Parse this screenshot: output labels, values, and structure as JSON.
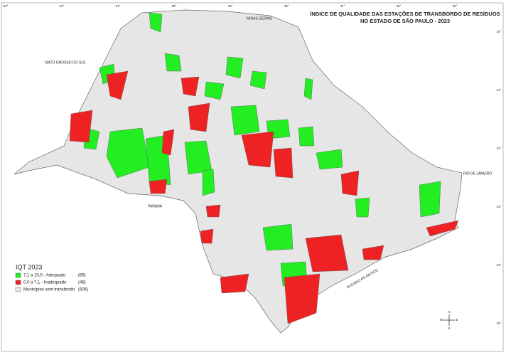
{
  "header": {
    "title_line1": "ÍNDICE DE QUALIDADE DAS ESTAÇÕES DE TRANSBORDO DE RESÍDUOS",
    "title_line2": "NO ESTADO DE SÃO PAULO - 2023"
  },
  "grid_labels": {
    "longitudes": [
      "53°",
      "52°",
      "51°",
      "50°",
      "49°",
      "48°",
      "47°",
      "46°",
      "45°"
    ],
    "latitudes": [
      "20°",
      "21°",
      "22°",
      "23°",
      "24°",
      "25°"
    ]
  },
  "neighbors": {
    "ms": "MATO GROSSO DO SUL",
    "mg": "MINAS GERAIS",
    "pr": "PARANÁ",
    "rj": "RIO DE JANEIRO",
    "ocean": "OCEANO ATLÂNTICO"
  },
  "legend": {
    "title": "IQT 2023",
    "items": [
      {
        "label": "7,1 a 10,0 - Adequado",
        "count": "(89)"
      },
      {
        "label": "0,0 a 7,1 - Inadequado",
        "count": "(48)"
      },
      {
        "label": "Municípios sem transbordo",
        "count": "(506)"
      }
    ]
  },
  "compass": {
    "n": "N",
    "s": "S",
    "e": "E",
    "w": "W"
  }
}
